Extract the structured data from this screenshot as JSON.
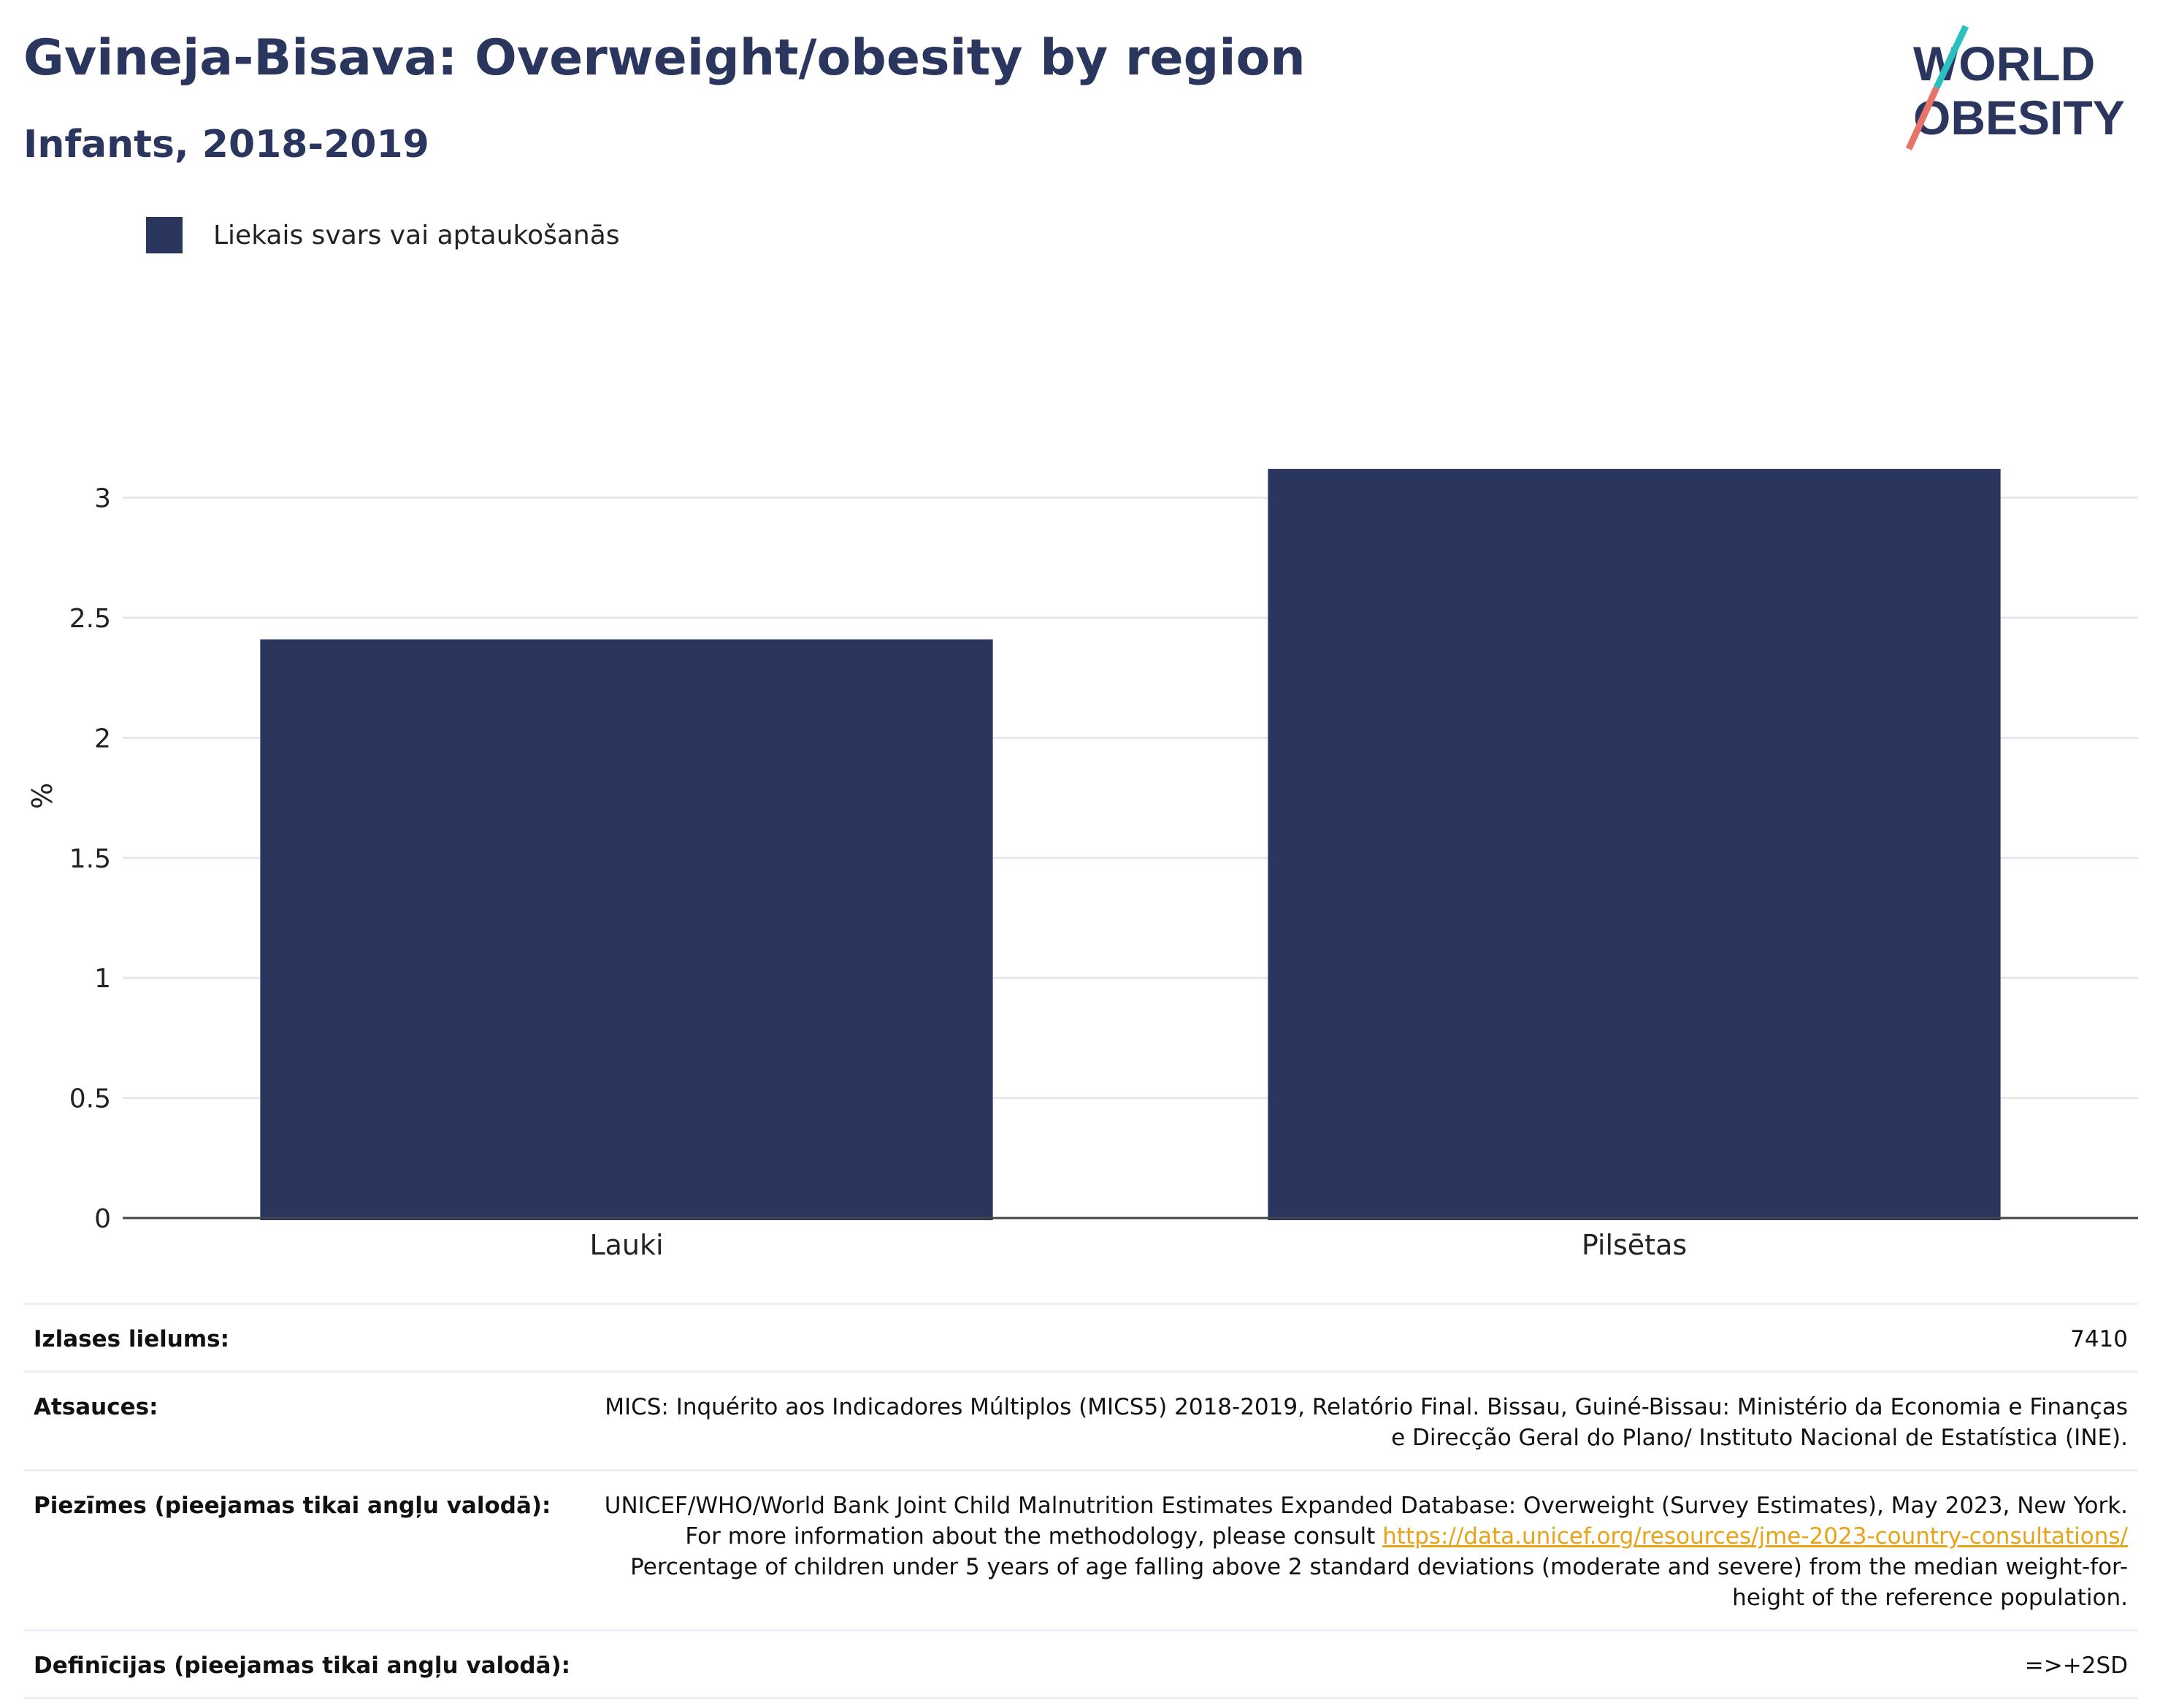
{
  "title": "Gvineja-Bisava: Overweight/obesity by region",
  "subtitle": "Infants, 2018-2019",
  "logo": {
    "line1": "WORLD",
    "line2": "OBESITY"
  },
  "colors": {
    "bar": "#2b365f",
    "title": "#2b365f",
    "link": "#e8a317",
    "logo_teal": "#2bbfbf",
    "logo_coral": "#e8736a"
  },
  "chart_data": {
    "type": "bar",
    "categories": [
      "Lauki",
      "Pilsētas"
    ],
    "series": [
      {
        "name": "Liekais svars vai aptaukošanās",
        "values": [
          2.41,
          3.12
        ]
      }
    ],
    "ylabel": "%",
    "ylim": [
      0,
      3.4
    ],
    "yticks": [
      0,
      0.5,
      1,
      1.5,
      2,
      2.5,
      3
    ],
    "ytick_labels": [
      "0",
      "0.5",
      "1",
      "1.5",
      "2",
      "2.5",
      "3"
    ],
    "grid": true,
    "legend_position": "top-left"
  },
  "info": {
    "sample_size": {
      "label": "Izlases lielums:",
      "value": "7410"
    },
    "sources": {
      "label": "Atsauces:",
      "value": "MICS: Inquérito aos Indicadores Múltiplos (MICS5) 2018-2019, Relatório Final. Bissau, Guiné-Bissau: Ministério da Economia e Finanças e Direcção Geral do Plano/ Instituto Nacional de Estatística (INE)."
    },
    "notes": {
      "label": "Piezīmes (pieejamas tikai angļu valodā):",
      "text_before": "UNICEF/WHO/World Bank Joint Child Malnutrition Estimates Expanded Database: Overweight (Survey Estimates), May 2023, New York. For more information about the methodology, please consult ",
      "link": "https://data.unicef.org/resources/jme-2023-country-consultations/",
      "text_after": " Percentage of children under 5 years of age falling above 2 standard deviations (moderate and severe) from the median weight-for-height of the reference population."
    },
    "definitions": {
      "label": "Definīcijas (pieejamas tikai angļu valodā):",
      "value": "=>+2SD"
    }
  }
}
